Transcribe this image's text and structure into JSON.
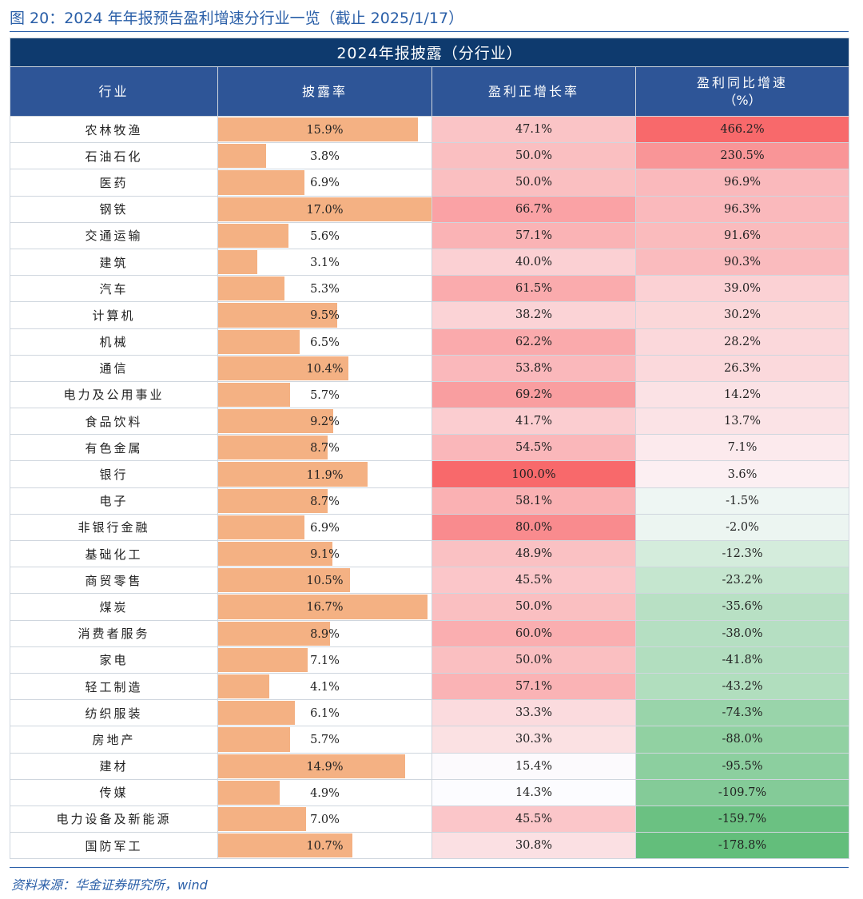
{
  "figure": {
    "title": "图 20：2024 年年报预告盈利增速分行业一览（截止 2025/1/17）",
    "source": "资料来源：华金证券研究所，wind"
  },
  "table": {
    "group_header": "2024年报披露（分行业）",
    "columns": {
      "industry": "行业",
      "disclosure_rate": "披露率",
      "positive_growth_rate": "盈利正增长率",
      "yoy_growth": "盈利同比增速",
      "yoy_growth_unit": "（%）"
    },
    "colors": {
      "bar": "#f4b183",
      "red_scale_max": "#f8696b",
      "green_scale_max": "#63be7b"
    },
    "rows": [
      {
        "industry": "农林牧渔",
        "disclosure": "15.9%",
        "disclosure_value": 15.9,
        "positive": "47.1%",
        "positive_value": 47.1,
        "yoy": "466.2%",
        "yoy_value": 466.2
      },
      {
        "industry": "石油石化",
        "disclosure": "3.8%",
        "disclosure_value": 3.8,
        "positive": "50.0%",
        "positive_value": 50.0,
        "yoy": "230.5%",
        "yoy_value": 230.5
      },
      {
        "industry": "医药",
        "disclosure": "6.9%",
        "disclosure_value": 6.9,
        "positive": "50.0%",
        "positive_value": 50.0,
        "yoy": "96.9%",
        "yoy_value": 96.9
      },
      {
        "industry": "钢铁",
        "disclosure": "17.0%",
        "disclosure_value": 17.0,
        "positive": "66.7%",
        "positive_value": 66.7,
        "yoy": "96.3%",
        "yoy_value": 96.3
      },
      {
        "industry": "交通运输",
        "disclosure": "5.6%",
        "disclosure_value": 5.6,
        "positive": "57.1%",
        "positive_value": 57.1,
        "yoy": "91.6%",
        "yoy_value": 91.6
      },
      {
        "industry": "建筑",
        "disclosure": "3.1%",
        "disclosure_value": 3.1,
        "positive": "40.0%",
        "positive_value": 40.0,
        "yoy": "90.3%",
        "yoy_value": 90.3
      },
      {
        "industry": "汽车",
        "disclosure": "5.3%",
        "disclosure_value": 5.3,
        "positive": "61.5%",
        "positive_value": 61.5,
        "yoy": "39.0%",
        "yoy_value": 39.0
      },
      {
        "industry": "计算机",
        "disclosure": "9.5%",
        "disclosure_value": 9.5,
        "positive": "38.2%",
        "positive_value": 38.2,
        "yoy": "30.2%",
        "yoy_value": 30.2
      },
      {
        "industry": "机械",
        "disclosure": "6.5%",
        "disclosure_value": 6.5,
        "positive": "62.2%",
        "positive_value": 62.2,
        "yoy": "28.2%",
        "yoy_value": 28.2
      },
      {
        "industry": "通信",
        "disclosure": "10.4%",
        "disclosure_value": 10.4,
        "positive": "53.8%",
        "positive_value": 53.8,
        "yoy": "26.3%",
        "yoy_value": 26.3
      },
      {
        "industry": "电力及公用事业",
        "disclosure": "5.7%",
        "disclosure_value": 5.7,
        "positive": "69.2%",
        "positive_value": 69.2,
        "yoy": "14.2%",
        "yoy_value": 14.2
      },
      {
        "industry": "食品饮料",
        "disclosure": "9.2%",
        "disclosure_value": 9.2,
        "positive": "41.7%",
        "positive_value": 41.7,
        "yoy": "13.7%",
        "yoy_value": 13.7
      },
      {
        "industry": "有色金属",
        "disclosure": "8.7%",
        "disclosure_value": 8.7,
        "positive": "54.5%",
        "positive_value": 54.5,
        "yoy": "7.1%",
        "yoy_value": 7.1
      },
      {
        "industry": "银行",
        "disclosure": "11.9%",
        "disclosure_value": 11.9,
        "positive": "100.0%",
        "positive_value": 100.0,
        "yoy": "3.6%",
        "yoy_value": 3.6
      },
      {
        "industry": "电子",
        "disclosure": "8.7%",
        "disclosure_value": 8.7,
        "positive": "58.1%",
        "positive_value": 58.1,
        "yoy": "-1.5%",
        "yoy_value": -1.5
      },
      {
        "industry": "非银行金融",
        "disclosure": "6.9%",
        "disclosure_value": 6.9,
        "positive": "80.0%",
        "positive_value": 80.0,
        "yoy": "-2.0%",
        "yoy_value": -2.0
      },
      {
        "industry": "基础化工",
        "disclosure": "9.1%",
        "disclosure_value": 9.1,
        "positive": "48.9%",
        "positive_value": 48.9,
        "yoy": "-12.3%",
        "yoy_value": -12.3
      },
      {
        "industry": "商贸零售",
        "disclosure": "10.5%",
        "disclosure_value": 10.5,
        "positive": "45.5%",
        "positive_value": 45.5,
        "yoy": "-23.2%",
        "yoy_value": -23.2
      },
      {
        "industry": "煤炭",
        "disclosure": "16.7%",
        "disclosure_value": 16.7,
        "positive": "50.0%",
        "positive_value": 50.0,
        "yoy": "-35.6%",
        "yoy_value": -35.6
      },
      {
        "industry": "消费者服务",
        "disclosure": "8.9%",
        "disclosure_value": 8.9,
        "positive": "60.0%",
        "positive_value": 60.0,
        "yoy": "-38.0%",
        "yoy_value": -38.0
      },
      {
        "industry": "家电",
        "disclosure": "7.1%",
        "disclosure_value": 7.1,
        "positive": "50.0%",
        "positive_value": 50.0,
        "yoy": "-41.8%",
        "yoy_value": -41.8
      },
      {
        "industry": "轻工制造",
        "disclosure": "4.1%",
        "disclosure_value": 4.1,
        "positive": "57.1%",
        "positive_value": 57.1,
        "yoy": "-43.2%",
        "yoy_value": -43.2
      },
      {
        "industry": "纺织服装",
        "disclosure": "6.1%",
        "disclosure_value": 6.1,
        "positive": "33.3%",
        "positive_value": 33.3,
        "yoy": "-74.3%",
        "yoy_value": -74.3
      },
      {
        "industry": "房地产",
        "disclosure": "5.7%",
        "disclosure_value": 5.7,
        "positive": "30.3%",
        "positive_value": 30.3,
        "yoy": "-88.0%",
        "yoy_value": -88.0
      },
      {
        "industry": "建材",
        "disclosure": "14.9%",
        "disclosure_value": 14.9,
        "positive": "15.4%",
        "positive_value": 15.4,
        "yoy": "-95.5%",
        "yoy_value": -95.5
      },
      {
        "industry": "传媒",
        "disclosure": "4.9%",
        "disclosure_value": 4.9,
        "positive": "14.3%",
        "positive_value": 14.3,
        "yoy": "-109.7%",
        "yoy_value": -109.7
      },
      {
        "industry": "电力设备及新能源",
        "disclosure": "7.0%",
        "disclosure_value": 7.0,
        "positive": "45.5%",
        "positive_value": 45.5,
        "yoy": "-159.7%",
        "yoy_value": -159.7
      },
      {
        "industry": "国防军工",
        "disclosure": "10.7%",
        "disclosure_value": 10.7,
        "positive": "30.8%",
        "positive_value": 30.8,
        "yoy": "-178.8%",
        "yoy_value": -178.8
      }
    ]
  }
}
